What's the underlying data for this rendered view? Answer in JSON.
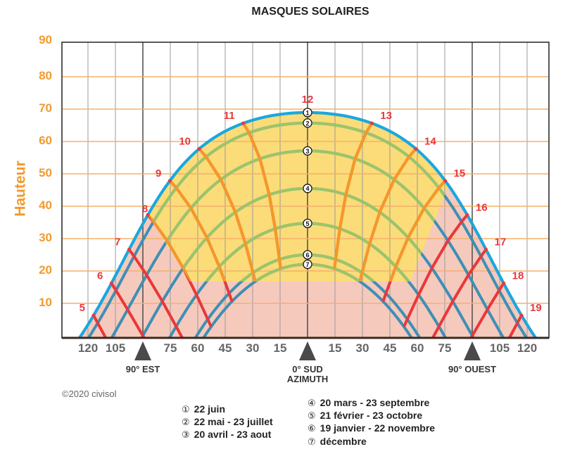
{
  "chart_data": {
    "type": "line",
    "title": "MASQUES SOLAIRES",
    "ylabel": "Hauteur",
    "xlabel": "AZIMUTH",
    "ylim": [
      0,
      90
    ],
    "xlim": [
      -135,
      135
    ],
    "grid": true,
    "y_ticks": [
      "90",
      "80",
      "70",
      "60",
      "50",
      "40",
      "30",
      "20",
      "10"
    ],
    "x_ticks": [
      "120",
      "105",
      "75",
      "60",
      "45",
      "30",
      "15",
      "15",
      "30",
      "45",
      "60",
      "75",
      "105",
      "120"
    ],
    "x_tick_values": [
      -120,
      -105,
      -75,
      -60,
      -45,
      -30,
      -15,
      15,
      30,
      45,
      60,
      75,
      105,
      120
    ],
    "direction_markers": [
      {
        "azimuth": -90,
        "label": "90° EST"
      },
      {
        "azimuth": 0,
        "label": "0° SUD",
        "label2": "AZIMUTH"
      },
      {
        "azimuth": 90,
        "label": "90° OUEST"
      }
    ],
    "series": [
      {
        "marker": "1",
        "name": "22 juin",
        "noon_altitude": 69
      },
      {
        "marker": "2",
        "name": "22 mai - 23 juillet",
        "noon_altitude": 65
      },
      {
        "marker": "3",
        "name": "20 avril - 23 aout",
        "noon_altitude": 57
      },
      {
        "marker": "4",
        "name": "20 mars - 23 septembre",
        "noon_altitude": 46
      },
      {
        "marker": "5",
        "name": "21 février - 23 octobre",
        "noon_altitude": 35
      },
      {
        "marker": "6",
        "name": "19 janvier - 22 novembre",
        "noon_altitude": 25
      },
      {
        "marker": "7",
        "name": "décembre",
        "noon_altitude": 22
      }
    ],
    "hours": [
      "5",
      "6",
      "7",
      "8",
      "9",
      "10",
      "11",
      "12",
      "13",
      "14",
      "15",
      "16",
      "17",
      "18",
      "19"
    ],
    "colors": {
      "sun_path": "#3f8fb5",
      "sun_path_visible": "#9cc46a",
      "hour_line": "#e8383a",
      "hour_line_visible": "#f5972a",
      "envelope": "#19a8e0",
      "mask_area": "#f6c9bd",
      "visible_area": "#fbdc78",
      "grid_h": "#f5b06a",
      "grid_v": "#9a9a9a",
      "axis_label": "#f39a2e"
    }
  },
  "copyright": "©2020 civisol",
  "legend": [
    {
      "num": "①",
      "text": "22 juin"
    },
    {
      "num": "②",
      "text": "22 mai - 23 juillet"
    },
    {
      "num": "③",
      "text": "20 avril - 23 aout"
    },
    {
      "num": "④",
      "text": "20 mars - 23 septembre"
    },
    {
      "num": "⑤",
      "text": "21 février - 23 octobre"
    },
    {
      "num": "⑥",
      "text": "19 janvier - 22 novembre"
    },
    {
      "num": "⑦",
      "text": "décembre"
    }
  ]
}
